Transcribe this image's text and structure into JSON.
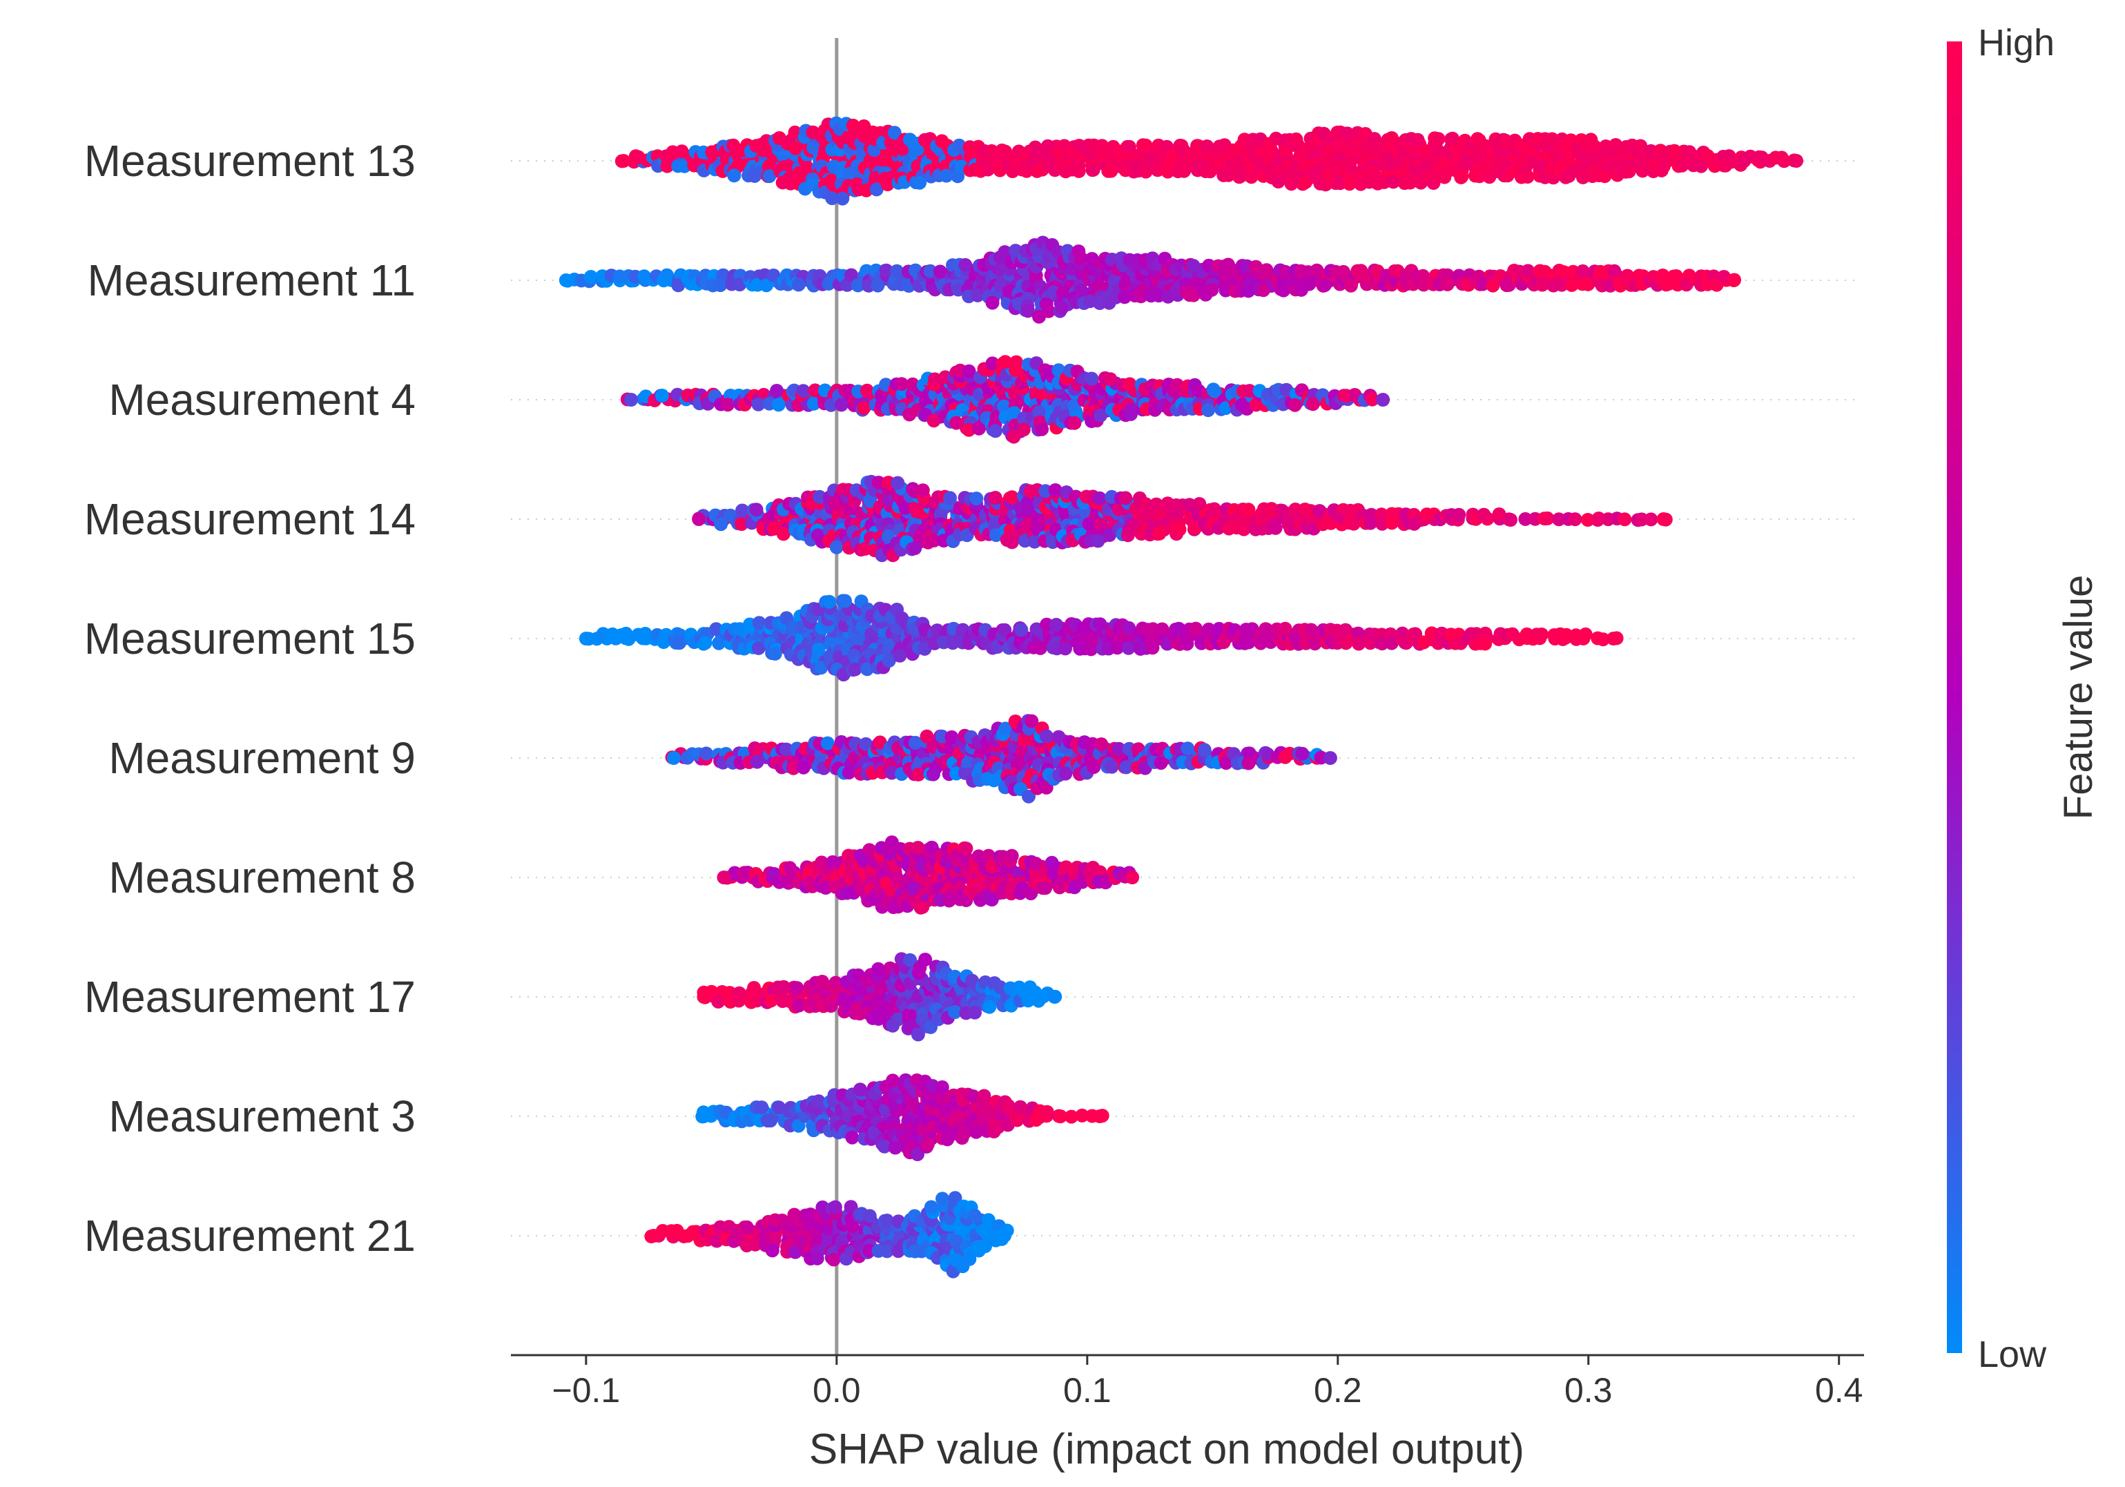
{
  "chart_data": {
    "type": "scatter",
    "subtype": "shap_beeswarm",
    "title": "",
    "xlabel": "SHAP value (impact on model output)",
    "xlim": [
      -0.13,
      0.41
    ],
    "xticks": [
      -0.1,
      0.0,
      0.1,
      0.2,
      0.3,
      0.4
    ],
    "xtick_labels": [
      "−0.1",
      "0.0",
      "0.1",
      "0.2",
      "0.3",
      "0.4"
    ],
    "zero_line": 0.0,
    "features": [
      {
        "name": "Measurement 13",
        "min": -0.085,
        "max": 0.383,
        "low_color_side": "left",
        "color_pattern": "high_spread_blue_near_zero",
        "density": [
          [
            -0.085,
            0.1
          ],
          [
            -0.05,
            0.4
          ],
          [
            -0.02,
            0.7
          ],
          [
            0.0,
            1.0
          ],
          [
            0.02,
            0.8
          ],
          [
            0.04,
            0.6
          ],
          [
            0.06,
            0.4
          ],
          [
            0.1,
            0.45
          ],
          [
            0.15,
            0.5
          ],
          [
            0.2,
            0.8
          ],
          [
            0.22,
            0.7
          ],
          [
            0.26,
            0.6
          ],
          [
            0.3,
            0.6
          ],
          [
            0.33,
            0.35
          ],
          [
            0.36,
            0.2
          ],
          [
            0.383,
            0.1
          ]
        ]
      },
      {
        "name": "Measurement 11",
        "min": -0.108,
        "max": 0.358,
        "low_color_side": "left",
        "color_pattern": "gradient_low_to_high",
        "density": [
          [
            -0.108,
            0.1
          ],
          [
            -0.06,
            0.2
          ],
          [
            0.0,
            0.25
          ],
          [
            0.04,
            0.35
          ],
          [
            0.06,
            0.6
          ],
          [
            0.08,
            1.0
          ],
          [
            0.1,
            0.7
          ],
          [
            0.15,
            0.5
          ],
          [
            0.2,
            0.3
          ],
          [
            0.25,
            0.25
          ],
          [
            0.3,
            0.3
          ],
          [
            0.35,
            0.2
          ],
          [
            0.358,
            0.1
          ]
        ]
      },
      {
        "name": "Measurement 4",
        "min": -0.082,
        "max": 0.218,
        "low_color_side": "left",
        "color_pattern": "mixed",
        "density": [
          [
            -0.082,
            0.1
          ],
          [
            -0.04,
            0.25
          ],
          [
            0.0,
            0.3
          ],
          [
            0.03,
            0.5
          ],
          [
            0.05,
            0.8
          ],
          [
            0.07,
            1.0
          ],
          [
            0.09,
            0.8
          ],
          [
            0.12,
            0.5
          ],
          [
            0.15,
            0.4
          ],
          [
            0.18,
            0.3
          ],
          [
            0.218,
            0.1
          ]
        ]
      },
      {
        "name": "Measurement 14",
        "min": -0.055,
        "max": 0.33,
        "low_color_side": "left",
        "color_pattern": "mixed_high_right",
        "density": [
          [
            -0.055,
            0.1
          ],
          [
            -0.02,
            0.5
          ],
          [
            0.0,
            0.8
          ],
          [
            0.02,
            1.0
          ],
          [
            0.04,
            0.7
          ],
          [
            0.06,
            0.6
          ],
          [
            0.08,
            0.8
          ],
          [
            0.1,
            0.7
          ],
          [
            0.12,
            0.6
          ],
          [
            0.15,
            0.4
          ],
          [
            0.18,
            0.4
          ],
          [
            0.2,
            0.3
          ],
          [
            0.23,
            0.2
          ],
          [
            0.27,
            0.1
          ],
          [
            0.33,
            0.1
          ]
        ]
      },
      {
        "name": "Measurement 15",
        "min": -0.1,
        "max": 0.31,
        "low_color_side": "left",
        "color_pattern": "low_left_high_right",
        "density": [
          [
            -0.1,
            0.1
          ],
          [
            -0.05,
            0.25
          ],
          [
            -0.02,
            0.6
          ],
          [
            0.0,
            1.0
          ],
          [
            0.02,
            0.8
          ],
          [
            0.04,
            0.3
          ],
          [
            0.08,
            0.4
          ],
          [
            0.1,
            0.5
          ],
          [
            0.14,
            0.3
          ],
          [
            0.18,
            0.3
          ],
          [
            0.22,
            0.25
          ],
          [
            0.26,
            0.2
          ],
          [
            0.31,
            0.1
          ]
        ]
      },
      {
        "name": "Measurement 9",
        "min": -0.065,
        "max": 0.197,
        "low_color_side": "left",
        "color_pattern": "mixed",
        "density": [
          [
            -0.065,
            0.1
          ],
          [
            -0.03,
            0.3
          ],
          [
            0.0,
            0.5
          ],
          [
            0.02,
            0.5
          ],
          [
            0.04,
            0.6
          ],
          [
            0.06,
            0.7
          ],
          [
            0.075,
            1.0
          ],
          [
            0.09,
            0.6
          ],
          [
            0.11,
            0.4
          ],
          [
            0.14,
            0.3
          ],
          [
            0.17,
            0.2
          ],
          [
            0.197,
            0.1
          ]
        ]
      },
      {
        "name": "Measurement 8",
        "min": -0.045,
        "max": 0.118,
        "low_color_side": "left",
        "color_pattern": "mostly_high",
        "density": [
          [
            -0.045,
            0.1
          ],
          [
            -0.02,
            0.3
          ],
          [
            0.0,
            0.5
          ],
          [
            0.02,
            0.9
          ],
          [
            0.04,
            0.8
          ],
          [
            0.06,
            0.7
          ],
          [
            0.08,
            0.5
          ],
          [
            0.1,
            0.3
          ],
          [
            0.118,
            0.1
          ]
        ]
      },
      {
        "name": "Measurement 17",
        "min": -0.053,
        "max": 0.087,
        "low_color_side": "right",
        "color_pattern": "high_left_low_right",
        "density": [
          [
            -0.053,
            0.15
          ],
          [
            -0.02,
            0.35
          ],
          [
            0.0,
            0.5
          ],
          [
            0.02,
            0.8
          ],
          [
            0.03,
            1.0
          ],
          [
            0.045,
            0.7
          ],
          [
            0.06,
            0.45
          ],
          [
            0.075,
            0.3
          ],
          [
            0.087,
            0.1
          ]
        ]
      },
      {
        "name": "Measurement 3",
        "min": -0.053,
        "max": 0.105,
        "low_color_side": "left",
        "color_pattern": "low_left_high_right",
        "density": [
          [
            -0.053,
            0.15
          ],
          [
            -0.02,
            0.35
          ],
          [
            0.0,
            0.6
          ],
          [
            0.015,
            0.8
          ],
          [
            0.03,
            1.0
          ],
          [
            0.045,
            0.7
          ],
          [
            0.06,
            0.6
          ],
          [
            0.075,
            0.3
          ],
          [
            0.087,
            0.1
          ],
          [
            0.105,
            0.05
          ]
        ]
      },
      {
        "name": "Measurement 21",
        "min": -0.073,
        "max": 0.067,
        "low_color_side": "right",
        "color_pattern": "high_left_low_right",
        "density": [
          [
            -0.073,
            0.1
          ],
          [
            -0.04,
            0.3
          ],
          [
            -0.01,
            0.7
          ],
          [
            0.0,
            0.8
          ],
          [
            0.02,
            0.5
          ],
          [
            0.035,
            0.6
          ],
          [
            0.045,
            1.0
          ],
          [
            0.055,
            0.7
          ],
          [
            0.067,
            0.2
          ]
        ]
      }
    ],
    "colorbar": {
      "title": "Feature value",
      "high_label": "High",
      "low_label": "Low",
      "low_color": "#008bfb",
      "high_color": "#ff0052"
    }
  }
}
